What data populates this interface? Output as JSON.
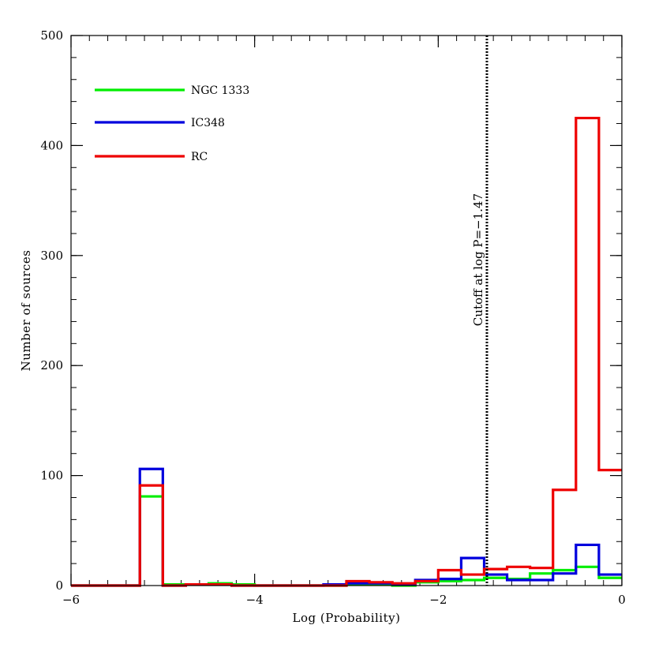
{
  "chart_data": {
    "type": "histogram",
    "xlabel": "Log (Probability)",
    "ylabel": "Number of sources",
    "xlim": [
      -6,
      0
    ],
    "ylim": [
      0,
      500
    ],
    "grid": false,
    "legend_position": "top-left",
    "x_major_ticks": [
      -6,
      -4,
      -2,
      0
    ],
    "x_tick_labels": [
      "−6",
      "−4",
      "−2",
      "0"
    ],
    "x_minor_step": 0.2,
    "y_major_ticks": [
      0,
      100,
      200,
      300,
      400,
      500
    ],
    "y_tick_labels": [
      "0",
      "100",
      "200",
      "300",
      "400",
      "500"
    ],
    "y_minor_step": 20,
    "bin_edges": [
      -6.0,
      -5.75,
      -5.5,
      -5.25,
      -5.0,
      -4.75,
      -4.5,
      -4.25,
      -4.0,
      -3.75,
      -3.5,
      -3.25,
      -3.0,
      -2.75,
      -2.5,
      -2.25,
      -2.0,
      -1.75,
      -1.5,
      -1.25,
      -1.0,
      -0.75,
      -0.5,
      -0.25,
      0.0
    ],
    "series": [
      {
        "name": "NGC 1333",
        "color": "#00ee00",
        "values": [
          0,
          0,
          0,
          81,
          1,
          1,
          2,
          1,
          0,
          0,
          0,
          0,
          1,
          1,
          0,
          3,
          4,
          5,
          7,
          6,
          11,
          14,
          17,
          7
        ]
      },
      {
        "name": "IC348",
        "color": "#0000dd",
        "values": [
          0,
          0,
          0,
          106,
          0,
          1,
          1,
          0,
          0,
          0,
          0,
          1,
          2,
          2,
          1,
          5,
          6,
          25,
          10,
          5,
          5,
          11,
          37,
          10
        ]
      },
      {
        "name": "RC",
        "color": "#ee0000",
        "values": [
          0,
          0,
          0,
          91,
          0,
          1,
          1,
          0,
          0,
          0,
          0,
          0,
          4,
          3,
          2,
          4,
          14,
          10,
          15,
          17,
          16,
          87,
          425,
          105
        ]
      }
    ],
    "cutoff": {
      "x": -1.47,
      "label": "Cutoff at log P=−1.47"
    }
  }
}
